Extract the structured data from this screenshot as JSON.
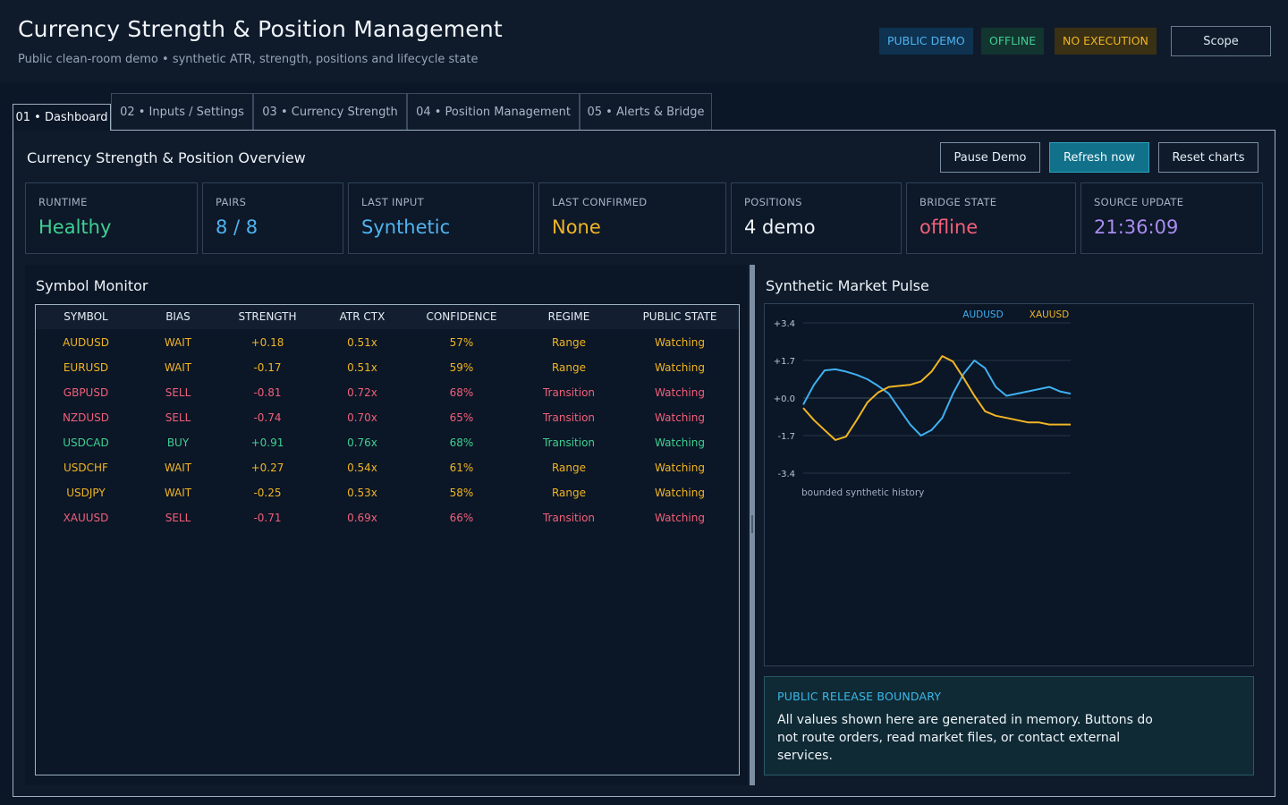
{
  "header": {
    "title": "Currency Strength & Position Management",
    "subtitle": "Public clean-room demo • synthetic ATR, strength, positions and lifecycle state",
    "badges": [
      {
        "label": "PUBLIC DEMO",
        "color": "#4fb3f0"
      },
      {
        "label": "OFFLINE",
        "color": "#3fd093"
      },
      {
        "label": "NO EXECUTION",
        "color": "#f0b524"
      }
    ],
    "scope_label": "Scope"
  },
  "tabs": [
    {
      "label": "01 • Dashboard",
      "active": true
    },
    {
      "label": "02 • Inputs / Settings",
      "active": false
    },
    {
      "label": "03 • Currency Strength",
      "active": false
    },
    {
      "label": "04 • Position Management",
      "active": false
    },
    {
      "label": "05 • Alerts & Bridge",
      "active": false
    }
  ],
  "overview": {
    "title": "Currency Strength & Position Overview",
    "buttons": {
      "pause": "Pause Demo",
      "refresh": "Refresh now",
      "reset": "Reset charts"
    }
  },
  "kpis": [
    {
      "label": "RUNTIME",
      "value": "Healthy",
      "color": "#3fd093"
    },
    {
      "label": "PAIRS",
      "value": "8 / 8",
      "color": "#4fb3f0"
    },
    {
      "label": "LAST INPUT",
      "value": "Synthetic",
      "color": "#4fb3f0"
    },
    {
      "label": "LAST CONFIRMED",
      "value": "None",
      "color": "#f0b524"
    },
    {
      "label": "POSITIONS",
      "value": "4 demo",
      "color": "#eef3f8"
    },
    {
      "label": "BRIDGE STATE",
      "value": "offline",
      "color": "#f0607a"
    },
    {
      "label": "SOURCE UPDATE",
      "value": "21:36:09",
      "color": "#a98cf0"
    }
  ],
  "monitor": {
    "title": "Symbol Monitor",
    "columns": [
      "SYMBOL",
      "BIAS",
      "STRENGTH",
      "ATR CTX",
      "CONFIDENCE",
      "REGIME",
      "PUBLIC STATE"
    ],
    "rows": [
      {
        "symbol": "AUDUSD",
        "bias": "WAIT",
        "strength": "+0.18",
        "atr": "0.51x",
        "confidence": "57%",
        "regime": "Range",
        "state": "Watching",
        "tone": "wait"
      },
      {
        "symbol": "EURUSD",
        "bias": "WAIT",
        "strength": "-0.17",
        "atr": "0.51x",
        "confidence": "59%",
        "regime": "Range",
        "state": "Watching",
        "tone": "wait"
      },
      {
        "symbol": "GBPUSD",
        "bias": "SELL",
        "strength": "-0.81",
        "atr": "0.72x",
        "confidence": "68%",
        "regime": "Transition",
        "state": "Watching",
        "tone": "sell"
      },
      {
        "symbol": "NZDUSD",
        "bias": "SELL",
        "strength": "-0.74",
        "atr": "0.70x",
        "confidence": "65%",
        "regime": "Transition",
        "state": "Watching",
        "tone": "sell"
      },
      {
        "symbol": "USDCAD",
        "bias": "BUY",
        "strength": "+0.91",
        "atr": "0.76x",
        "confidence": "68%",
        "regime": "Transition",
        "state": "Watching",
        "tone": "buy"
      },
      {
        "symbol": "USDCHF",
        "bias": "WAIT",
        "strength": "+0.27",
        "atr": "0.54x",
        "confidence": "61%",
        "regime": "Range",
        "state": "Watching",
        "tone": "wait"
      },
      {
        "symbol": "USDJPY",
        "bias": "WAIT",
        "strength": "-0.25",
        "atr": "0.53x",
        "confidence": "58%",
        "regime": "Range",
        "state": "Watching",
        "tone": "wait"
      },
      {
        "symbol": "XAUUSD",
        "bias": "SELL",
        "strength": "-0.71",
        "atr": "0.69x",
        "confidence": "66%",
        "regime": "Transition",
        "state": "Watching",
        "tone": "sell"
      }
    ],
    "tone_colors": {
      "wait": "#f0b524",
      "sell": "#f0607a",
      "buy": "#3fd093"
    }
  },
  "pulse": {
    "title": "Synthetic Market Pulse",
    "caption": "bounded synthetic history"
  },
  "chart_data": {
    "type": "line",
    "title": "",
    "xlabel": "",
    "ylabel": "",
    "ylim": [
      -3.4,
      3.4
    ],
    "yticks": [
      3.4,
      1.7,
      0.0,
      -1.7,
      -3.4
    ],
    "ytick_labels": [
      "+3.4",
      "+1.7",
      "+0.0",
      "-1.7",
      "-3.4"
    ],
    "grid": true,
    "legend_position": "top",
    "x": [
      0,
      4,
      8,
      12,
      16,
      20,
      24,
      28,
      32,
      36,
      40,
      44,
      48,
      52,
      56,
      60,
      64,
      68,
      72,
      76,
      80,
      84,
      88,
      92,
      96,
      100
    ],
    "series": [
      {
        "name": "AUDUSD",
        "color": "#3fb0f0",
        "values": [
          -0.3,
          0.6,
          1.25,
          1.3,
          1.2,
          1.05,
          0.85,
          0.55,
          0.2,
          -0.5,
          -1.2,
          -1.7,
          -1.45,
          -0.9,
          0.2,
          1.1,
          1.7,
          1.35,
          0.5,
          0.1,
          0.2,
          0.3,
          0.4,
          0.5,
          0.3,
          0.2
        ]
      },
      {
        "name": "XAUUSD",
        "color": "#f0b524",
        "values": [
          -0.45,
          -1.0,
          -1.45,
          -1.9,
          -1.75,
          -1.0,
          -0.2,
          0.25,
          0.5,
          0.55,
          0.6,
          0.75,
          1.2,
          1.9,
          1.65,
          0.9,
          0.1,
          -0.6,
          -0.8,
          -0.9,
          -1.0,
          -1.1,
          -1.1,
          -1.2,
          -1.2,
          -1.2
        ]
      }
    ]
  },
  "boundary": {
    "title": "PUBLIC RELEASE BOUNDARY",
    "text": "All values shown here are generated in memory. Buttons do not route orders, read market files, or contact external services."
  }
}
